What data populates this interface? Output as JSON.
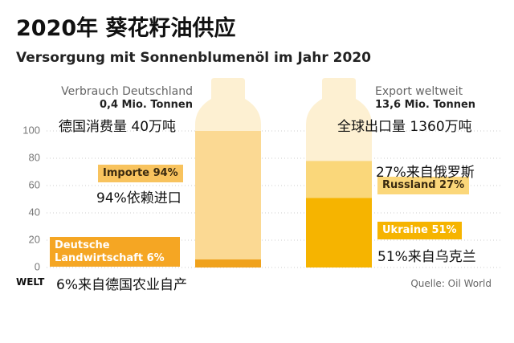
{
  "chart_data": {
    "type": "bottle",
    "title": "2020年 葵花籽油供应",
    "subtitle": "Versorgung mit Sonnenblumenöl im Jahr 2020",
    "ylim": [
      0,
      100
    ],
    "yticks": [
      0,
      20,
      40,
      60,
      80,
      100
    ],
    "grid": true,
    "bottle_color": "#fdf0d2",
    "bottles": [
      {
        "name": "Verbrauch Deutschland",
        "total": "0,4 Mio. Tonnen",
        "note": "德国消费量 40万吨",
        "segments": [
          {
            "value": 6,
            "label": "Deutsche Landwirtschaft 6%",
            "note": "6%来自德国农业自产",
            "color": "#f0a21c",
            "label_bg": "#f5a623",
            "label_color": "#ffffff"
          },
          {
            "value": 94,
            "label": "Importe 94%",
            "note": "94%依赖进口",
            "color": "#fbd993",
            "label_bg": "#f8c35e",
            "label_color": "#3a2a10"
          }
        ]
      },
      {
        "name": "Export weltweit",
        "total": "13,6 Mio. Tonnen",
        "note": "全球出口量 1360万吨",
        "segments": [
          {
            "value": 51,
            "label": "Ukraine 51%",
            "note": "51%来自乌克兰",
            "color": "#f6b400",
            "label_bg": "#f6b400",
            "label_color": "#ffffff"
          },
          {
            "value": 27,
            "label": "Russland 27%",
            "note": "27%来自俄罗斯",
            "color": "#fad77a",
            "label_bg": "#fbd77a",
            "label_color": "#3a2a10"
          }
        ]
      }
    ],
    "logo": "WELT",
    "source": "Quelle: Oil World"
  }
}
